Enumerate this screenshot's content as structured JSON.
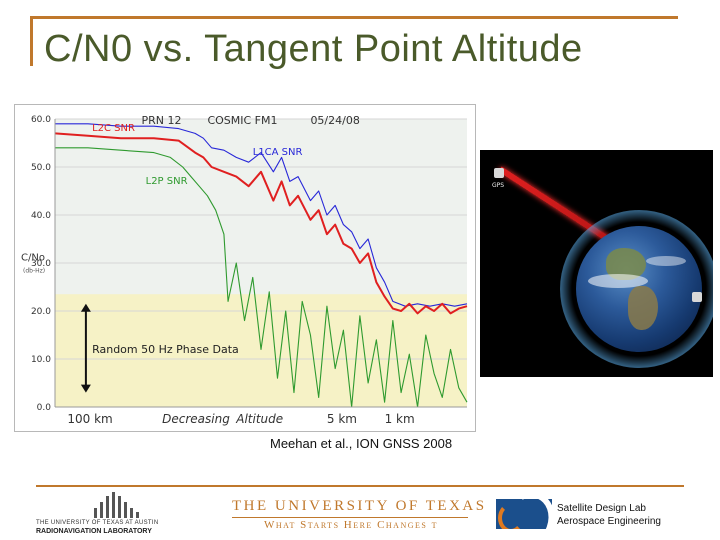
{
  "slide": {
    "title": "C/N0 vs. Tangent Point Altitude",
    "citation": "Meehan et al., ION GNSS 2008"
  },
  "illustration": {
    "gps_label": "GPS"
  },
  "footer": {
    "rnl_line1": "THE UNIVERSITY OF TEXAS AT AUSTIN",
    "rnl_line2": "RADIONAVIGATION LABORATORY",
    "ut_line1": "THE UNIVERSITY OF TEXAS",
    "ut_line2": "What Starts Here Changes t",
    "sdl_line1": "Satellite Design Lab",
    "sdl_line2": "Aerospace Engineering"
  },
  "colors": {
    "title": "#4a5a2a",
    "accent_rule": "#c0782c",
    "l2c": "#e02020",
    "l1ca": "#2828d8",
    "l2p": "#2f9a2f",
    "phase_band": "#f6f2c6",
    "plot_bg": "#eef2ee"
  },
  "chart_data": {
    "type": "line",
    "header": {
      "prn": "PRN 12",
      "mission": "COSMIC FM1",
      "date": "05/24/08"
    },
    "ylabel": "C/No",
    "yunits": "(db-Hz)",
    "ylim": [
      0,
      60
    ],
    "yticks": [
      "0.0",
      "10.0",
      "20.0",
      "30.0",
      "40.0",
      "50.0",
      "60.0"
    ],
    "xlim": [
      0,
      100
    ],
    "x_labels": [
      {
        "text": "100 km",
        "x": 3
      },
      {
        "text": "Decreasing",
        "x": 26
      },
      {
        "text": "Altitude",
        "x": 44
      },
      {
        "text": "5 km",
        "x": 66
      },
      {
        "text": "1 km",
        "x": 80
      }
    ],
    "band": {
      "label": "Random 50 Hz Phase Data",
      "y_range": [
        0,
        23.5
      ]
    },
    "series": [
      {
        "name": "L1CA SNR",
        "color": "#2828d8",
        "x": [
          0,
          8,
          16,
          24,
          30,
          34,
          36,
          38,
          41,
          44,
          47,
          50,
          53,
          55,
          57,
          59,
          62,
          64,
          66,
          68,
          70,
          72,
          74,
          76,
          78,
          80,
          82,
          85,
          88,
          91,
          94,
          97,
          100
        ],
        "y": [
          59,
          59,
          58.5,
          58.5,
          58,
          57,
          56,
          54,
          53.5,
          52,
          51,
          53,
          49,
          52,
          47,
          48,
          43,
          45,
          40,
          42,
          38,
          36.5,
          33,
          35,
          29,
          26,
          22,
          21,
          21.5,
          21,
          21.5,
          21,
          21.5
        ]
      },
      {
        "name": "L2C SNR",
        "color": "#e02020",
        "x": [
          0,
          8,
          16,
          24,
          30,
          34,
          36,
          38,
          41,
          44,
          47,
          50,
          53,
          55,
          57,
          59,
          62,
          64,
          66,
          68,
          70,
          72,
          74,
          76,
          78,
          80,
          82,
          84,
          86,
          88,
          90,
          92,
          94,
          96,
          98,
          100
        ],
        "y": [
          57,
          56.5,
          56,
          56,
          55.5,
          53,
          52,
          50,
          49,
          48,
          46,
          49,
          43,
          47,
          42,
          44,
          39,
          41,
          36,
          38,
          34,
          33,
          30,
          32,
          26,
          23,
          20.5,
          20,
          21.5,
          19.5,
          21,
          20,
          21.5,
          19.5,
          20.5,
          21
        ]
      },
      {
        "name": "L2P SNR",
        "color": "#2f9a2f",
        "x": [
          0,
          8,
          16,
          24,
          28,
          31,
          33,
          35,
          37,
          39,
          41,
          42,
          44,
          46,
          48,
          50,
          52,
          54,
          56,
          58,
          60,
          62,
          64,
          66,
          68,
          70,
          72,
          74,
          76,
          78,
          80,
          82,
          84,
          86,
          88,
          90,
          92,
          94,
          96,
          98,
          100
        ],
        "y": [
          54,
          54,
          53.5,
          53,
          52,
          50,
          48,
          46,
          44,
          41,
          36,
          22,
          30,
          18,
          27,
          12,
          24,
          6,
          20,
          3,
          22,
          15,
          2,
          21,
          8,
          16,
          0,
          19,
          5,
          14,
          1,
          18,
          3,
          11,
          0,
          15,
          7,
          2,
          12,
          4,
          1
        ]
      }
    ],
    "grid": true,
    "legend": "inline"
  }
}
